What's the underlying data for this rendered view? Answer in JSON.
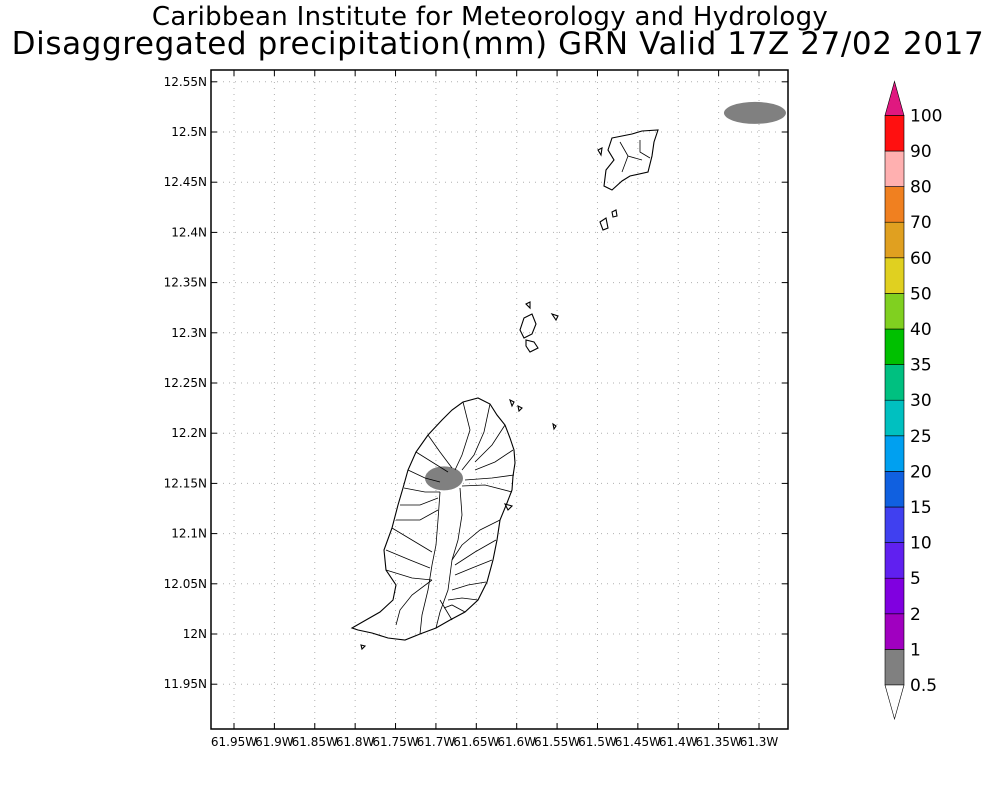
{
  "title_line1": "Caribbean Institute for Meteorology and Hydrology",
  "title_line2": "Disaggregated precipitation(mm) GRN Valid 17Z 27/02 2017",
  "lat_ticks": [
    "12.55N",
    "12.5N",
    "12.45N",
    "12.4N",
    "12.35N",
    "12.3N",
    "12.25N",
    "12.2N",
    "12.15N",
    "12.1N",
    "12.05N",
    "12N",
    "11.95N"
  ],
  "lon_ticks": [
    "61.95W",
    "61.9W",
    "61.85W",
    "61.8W",
    "61.75W",
    "61.7W",
    "61.65W",
    "61.6W",
    "61.55W",
    "61.5W",
    "61.45W",
    "61.4W",
    "61.35W",
    "61.3W"
  ],
  "colorbar": {
    "labels": [
      "0.5",
      "1",
      "2",
      "5",
      "10",
      "15",
      "20",
      "25",
      "30",
      "35",
      "40",
      "50",
      "60",
      "70",
      "80",
      "90",
      "100"
    ],
    "colors": [
      "#808080",
      "#a000c0",
      "#8000e0",
      "#6020f0",
      "#4040f0",
      "#1060e0",
      "#00a0f0",
      "#00c0c0",
      "#00c080",
      "#00c000",
      "#80d020",
      "#e0d020",
      "#e0a020",
      "#f08020",
      "#ffb0b0",
      "#ff1010",
      "#f04040"
    ],
    "top_arrow_color": "#e01880",
    "bottom_arrow_color": "#ffffff"
  },
  "precip_areas": [
    {
      "name": "central-grenada",
      "value_mm": 0.5,
      "lon": -61.69,
      "lat": 12.155
    },
    {
      "name": "northeast-sea",
      "value_mm": 0.5,
      "lon": -61.305,
      "lat": 12.519
    }
  ]
}
